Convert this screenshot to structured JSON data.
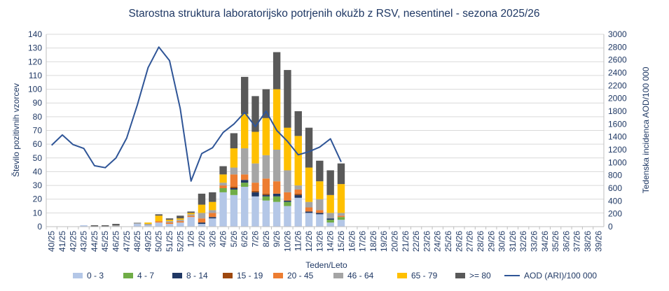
{
  "chart_data": {
    "type": "bar",
    "stacked": true,
    "title": "Starostna struktura  laboratorijsko potrjenih  okužb z RSV, nesentinel  - sezona 2025/26",
    "xlabel": "Teden/Leto",
    "ylabel": "Število pozitivnih vzorcev",
    "y2label": "Tedenska incidenca AOD/100 000",
    "ylim": [
      0,
      140
    ],
    "y2lim": [
      0,
      3000
    ],
    "yticks": [
      "0",
      "10",
      "20",
      "30",
      "40",
      "50",
      "60",
      "70",
      "80",
      "90",
      "100",
      "110",
      "120",
      "130",
      "140"
    ],
    "y2ticks": [
      "0",
      "200",
      "400",
      "600",
      "800",
      "1000",
      "1200",
      "1400",
      "1600",
      "1800",
      "2000",
      "2200",
      "2400",
      "2600",
      "2800",
      "3000"
    ],
    "grid": true,
    "legend_position": "bottom",
    "categories": [
      "40/25",
      "41/25",
      "42/25",
      "43/25",
      "44/25",
      "45/25",
      "46/25",
      "47/25",
      "48/25",
      "49/25",
      "50/25",
      "51/25",
      "52/25",
      "1/26",
      "2/26",
      "3/26",
      "4/26",
      "5/26",
      "6/26",
      "7/26",
      "8/26",
      "9/26",
      "10/26",
      "11/26",
      "12/26",
      "13/26",
      "14/26",
      "15/26",
      "16/26",
      "17/26",
      "18/26",
      "19/26",
      "20/26",
      "21/26",
      "22/26",
      "23/26",
      "24/26",
      "25/26",
      "26/26",
      "27/26",
      "28/26",
      "29/26",
      "30/26",
      "31/26",
      "32/26",
      "33/26",
      "34/26",
      "35/26",
      "36/26",
      "37/26",
      "38/26",
      "39/26"
    ],
    "series": [
      {
        "name": "0 - 3",
        "color": "#b4c7e7",
        "values": [
          0,
          0,
          0,
          1,
          0,
          0,
          0,
          0,
          2,
          1,
          3,
          2,
          3,
          7,
          2,
          6,
          25,
          23,
          29,
          22,
          19,
          18,
          15,
          21,
          10,
          9,
          3,
          5,
          0,
          0,
          0,
          0,
          0,
          0,
          0,
          0,
          0,
          0,
          0,
          0,
          0,
          0,
          0,
          0,
          0,
          0,
          0,
          0,
          0,
          0,
          0,
          0
        ]
      },
      {
        "name": "4 - 7",
        "color": "#70ad47",
        "values": [
          0,
          0,
          0,
          0,
          0,
          0,
          0,
          0,
          0,
          0,
          0,
          0,
          0,
          0,
          0,
          0,
          3,
          4,
          3,
          0,
          3,
          4,
          3,
          0,
          0,
          0,
          2,
          2,
          0,
          0,
          0,
          0,
          0,
          0,
          0,
          0,
          0,
          0,
          0,
          0,
          0,
          0,
          0,
          0,
          0,
          0,
          0,
          0,
          0,
          0,
          0,
          0
        ]
      },
      {
        "name": "8 - 14",
        "color": "#203864",
        "values": [
          0,
          0,
          0,
          0,
          0,
          0,
          0,
          0,
          0,
          0,
          0,
          0,
          0,
          0,
          1,
          1,
          0,
          1,
          2,
          3,
          1,
          2,
          1,
          2,
          1,
          1,
          1,
          0,
          0,
          0,
          0,
          0,
          0,
          0,
          0,
          0,
          0,
          0,
          0,
          0,
          0,
          0,
          0,
          0,
          0,
          0,
          0,
          0,
          0,
          0,
          0,
          0
        ]
      },
      {
        "name": "15 - 19",
        "color": "#9e480e",
        "values": [
          0,
          0,
          0,
          0,
          0,
          0,
          0,
          0,
          0,
          0,
          0,
          0,
          0,
          0,
          0,
          0,
          0,
          1,
          0,
          1,
          1,
          0,
          0,
          1,
          0,
          0,
          0,
          0,
          0,
          0,
          0,
          0,
          0,
          0,
          0,
          0,
          0,
          0,
          0,
          0,
          0,
          0,
          0,
          0,
          0,
          0,
          0,
          0,
          0,
          0,
          0,
          0
        ]
      },
      {
        "name": "20 - 45",
        "color": "#ed7d31",
        "values": [
          0,
          0,
          0,
          0,
          0,
          0,
          0,
          0,
          0,
          0,
          1,
          1,
          1,
          1,
          3,
          3,
          2,
          9,
          4,
          6,
          11,
          9,
          6,
          3,
          3,
          2,
          0,
          1,
          0,
          0,
          0,
          0,
          0,
          0,
          0,
          0,
          0,
          0,
          0,
          0,
          0,
          0,
          0,
          0,
          0,
          0,
          0,
          0,
          0,
          0,
          0,
          0
        ]
      },
      {
        "name": "46 - 64",
        "color": "#a5a5a5",
        "values": [
          0,
          0,
          0,
          0,
          0,
          0,
          1,
          0,
          1,
          1,
          0,
          1,
          1,
          1,
          4,
          2,
          2,
          5,
          19,
          14,
          17,
          23,
          16,
          3,
          4,
          8,
          4,
          2,
          0,
          0,
          0,
          0,
          0,
          0,
          0,
          0,
          0,
          0,
          0,
          0,
          0,
          0,
          0,
          0,
          0,
          0,
          0,
          0,
          0,
          0,
          0,
          0
        ]
      },
      {
        "name": "65 - 79",
        "color": "#ffc000",
        "values": [
          0,
          0,
          0,
          0,
          0,
          0,
          0,
          0,
          0,
          1,
          4,
          1,
          1,
          1,
          6,
          6,
          6,
          14,
          25,
          23,
          27,
          44,
          31,
          36,
          25,
          13,
          13,
          21,
          0,
          0,
          0,
          0,
          0,
          0,
          0,
          0,
          0,
          0,
          0,
          0,
          0,
          0,
          0,
          0,
          0,
          0,
          0,
          0,
          0,
          0,
          0,
          0
        ]
      },
      {
        "name": ">= 80",
        "color": "#595959",
        "values": [
          0,
          0,
          0,
          0,
          1,
          1,
          1,
          0,
          0,
          0,
          1,
          1,
          2,
          1,
          8,
          7,
          6,
          11,
          27,
          26,
          21,
          27,
          42,
          18,
          29,
          15,
          18,
          15,
          0,
          0,
          0,
          0,
          0,
          0,
          0,
          0,
          0,
          0,
          0,
          0,
          0,
          0,
          0,
          0,
          0,
          0,
          0,
          0,
          0,
          0,
          0,
          0
        ]
      }
    ],
    "line": {
      "name": "AOD (ARI)/100 000",
      "color": "#2f5597",
      "axis": "secondary",
      "values": [
        1270,
        1430,
        1280,
        1220,
        950,
        920,
        1070,
        1380,
        1900,
        2480,
        2800,
        2590,
        1840,
        710,
        1140,
        1230,
        1470,
        1600,
        1780,
        1560,
        1800,
        1500,
        1330,
        1120,
        1170,
        1240,
        1370,
        1010
      ]
    }
  }
}
